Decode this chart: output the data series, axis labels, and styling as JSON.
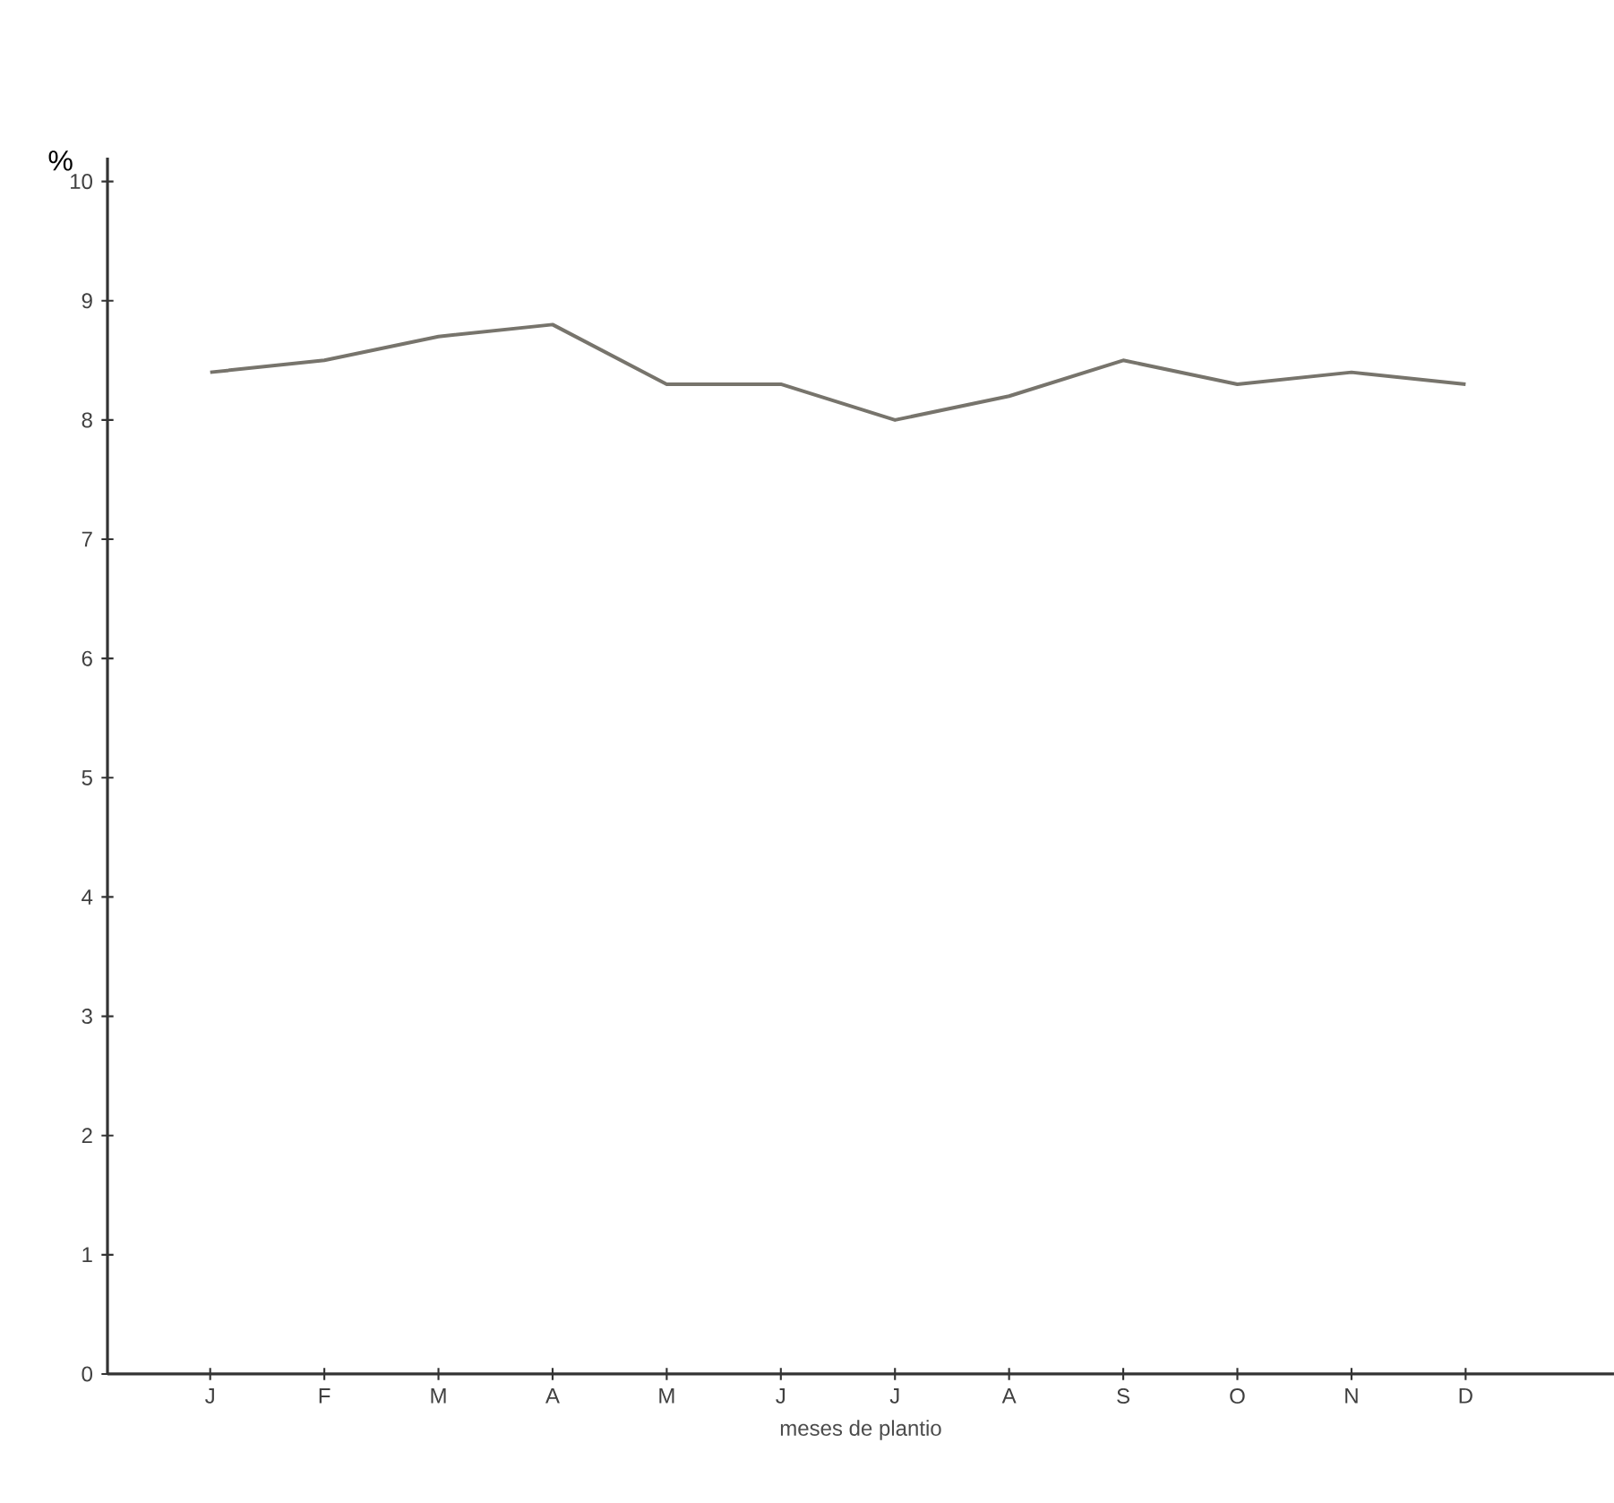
{
  "chart_data": {
    "type": "line",
    "ylabel": "%",
    "xlabel": "meses de plantio",
    "categories": [
      "J",
      "F",
      "M",
      "A",
      "M",
      "J",
      "J",
      "A",
      "S",
      "O",
      "N",
      "D"
    ],
    "series": [
      {
        "color": "#77746c",
        "values": [
          8.4,
          8.5,
          8.7,
          8.8,
          8.3,
          8.3,
          8.0,
          8.2,
          8.5,
          8.3,
          8.4,
          8.3
        ]
      }
    ],
    "ylim": [
      0,
      10.2
    ],
    "yticks": [
      0,
      1,
      2,
      3,
      4,
      5,
      6,
      7,
      8,
      9,
      10
    ],
    "grid": false,
    "marker": "none",
    "line_style": "solid"
  }
}
